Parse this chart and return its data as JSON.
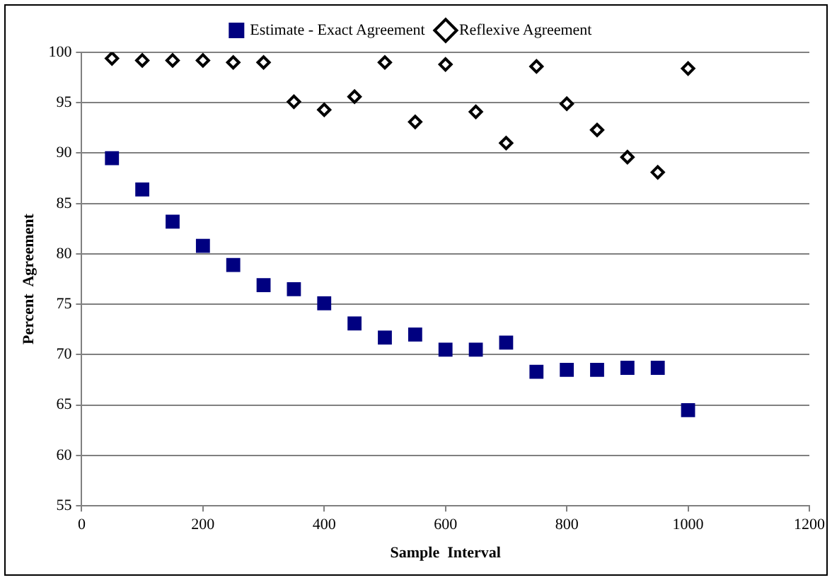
{
  "chart_data": {
    "type": "scatter",
    "xlabel": "Sample  Interval",
    "ylabel": "Percent  Agreement",
    "x": [
      50,
      100,
      150,
      200,
      250,
      300,
      350,
      400,
      450,
      500,
      550,
      600,
      650,
      700,
      750,
      800,
      850,
      900,
      950,
      1000
    ],
    "series": [
      {
        "name": "Estimate - Exact Agreement",
        "color": "#000080",
        "marker": "square",
        "values": [
          89.5,
          86.4,
          83.2,
          80.8,
          78.9,
          76.9,
          76.5,
          75.1,
          73.1,
          71.7,
          72.0,
          70.5,
          70.5,
          71.2,
          68.3,
          68.5,
          68.5,
          68.7,
          68.7,
          64.5
        ]
      },
      {
        "name": "Reflexive Agreement",
        "color": "#000000",
        "marker": "diamond",
        "values": [
          99.4,
          99.2,
          99.2,
          99.2,
          99.0,
          99.0,
          95.1,
          94.3,
          95.6,
          99.0,
          93.1,
          98.8,
          94.1,
          91.0,
          98.6,
          94.9,
          92.3,
          89.6,
          88.1,
          98.4
        ]
      }
    ],
    "xlim": [
      0,
      1200
    ],
    "xticks": [
      0,
      200,
      400,
      600,
      800,
      1000,
      1200
    ],
    "ylim": [
      55,
      100
    ],
    "yticks": [
      55,
      60,
      65,
      70,
      75,
      80,
      85,
      90,
      95,
      100
    ],
    "grid": "y",
    "legend": "top"
  }
}
